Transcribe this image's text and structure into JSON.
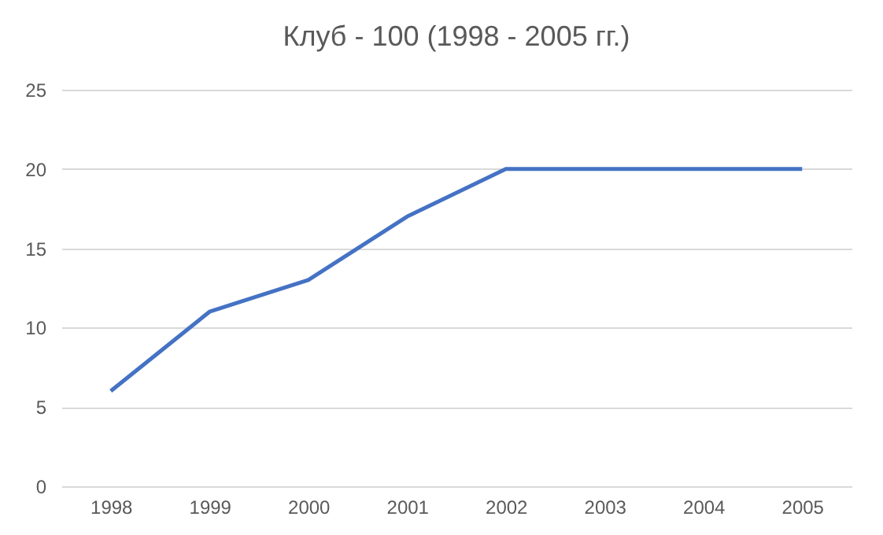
{
  "chart_data": {
    "type": "line",
    "title": "Клуб - 100 (1998 - 2005 гг.)",
    "categories": [
      "1998",
      "1999",
      "2000",
      "2001",
      "2002",
      "2003",
      "2004",
      "2005"
    ],
    "series": [
      {
        "color": "#4472c4",
        "values": [
          6,
          11,
          13,
          17,
          20,
          20,
          20,
          20
        ]
      }
    ],
    "ylim": [
      0,
      25
    ],
    "yticks": [
      0,
      5,
      10,
      15,
      20,
      25
    ],
    "grid": "y",
    "legend": false,
    "marker": "none",
    "line_style": "solid"
  }
}
